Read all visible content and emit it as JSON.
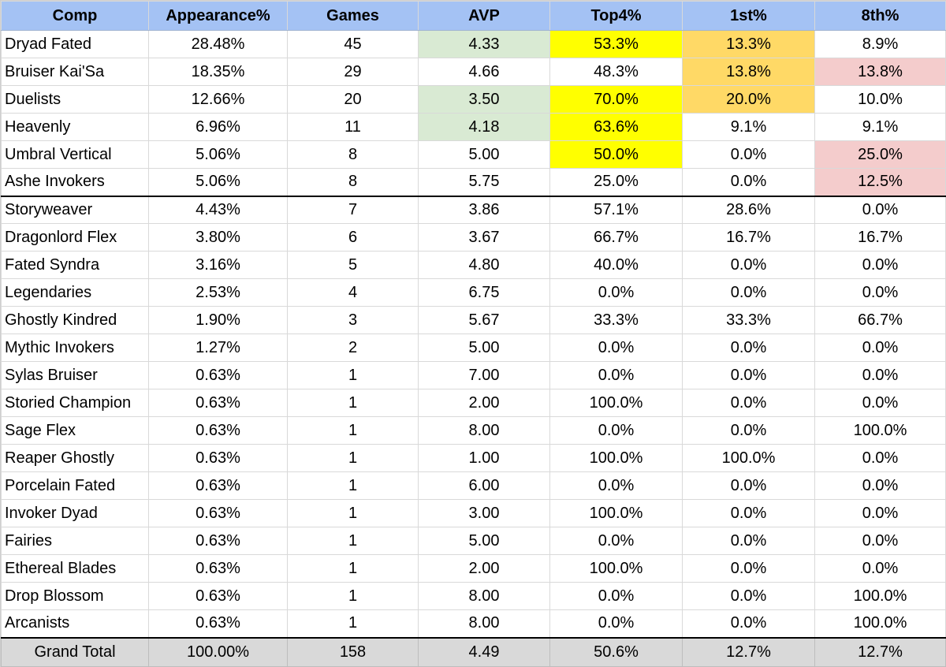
{
  "headers": [
    "Comp",
    "Appearance%",
    "Games",
    "AVP",
    "Top4%",
    "1st%",
    "8th%"
  ],
  "highlight_colors": {
    "green": "#d9ead3",
    "yellow": "#ffff00",
    "orange": "#ffd966",
    "pink": "#f4cccc",
    "header": "#a4c2f4",
    "total": "#d9d9d9"
  },
  "rows": [
    {
      "cells": [
        "Dryad Fated",
        "28.48%",
        "45",
        "4.33",
        "53.3%",
        "13.3%",
        "8.9%"
      ],
      "colors": [
        "",
        "",
        "",
        "green",
        "yellow",
        "orange",
        ""
      ]
    },
    {
      "cells": [
        "Bruiser Kai'Sa",
        "18.35%",
        "29",
        "4.66",
        "48.3%",
        "13.8%",
        "13.8%"
      ],
      "colors": [
        "",
        "",
        "",
        "",
        "",
        "orange",
        "pink"
      ]
    },
    {
      "cells": [
        "Duelists",
        "12.66%",
        "20",
        "3.50",
        "70.0%",
        "20.0%",
        "10.0%"
      ],
      "colors": [
        "",
        "",
        "",
        "green",
        "yellow",
        "orange",
        ""
      ]
    },
    {
      "cells": [
        "Heavenly",
        "6.96%",
        "11",
        "4.18",
        "63.6%",
        "9.1%",
        "9.1%"
      ],
      "colors": [
        "",
        "",
        "",
        "green",
        "yellow",
        "",
        ""
      ]
    },
    {
      "cells": [
        "Umbral Vertical",
        "5.06%",
        "8",
        "5.00",
        "50.0%",
        "0.0%",
        "25.0%"
      ],
      "colors": [
        "",
        "",
        "",
        "",
        "yellow",
        "",
        "pink"
      ]
    },
    {
      "cells": [
        "Ashe Invokers",
        "5.06%",
        "8",
        "5.75",
        "25.0%",
        "0.0%",
        "12.5%"
      ],
      "colors": [
        "",
        "",
        "",
        "",
        "",
        "",
        "pink"
      ]
    },
    {
      "cells": [
        "Storyweaver",
        "4.43%",
        "7",
        "3.86",
        "57.1%",
        "28.6%",
        "0.0%"
      ],
      "colors": []
    },
    {
      "cells": [
        "Dragonlord Flex",
        "3.80%",
        "6",
        "3.67",
        "66.7%",
        "16.7%",
        "16.7%"
      ],
      "colors": []
    },
    {
      "cells": [
        "Fated Syndra",
        "3.16%",
        "5",
        "4.80",
        "40.0%",
        "0.0%",
        "0.0%"
      ],
      "colors": []
    },
    {
      "cells": [
        "Legendaries",
        "2.53%",
        "4",
        "6.75",
        "0.0%",
        "0.0%",
        "0.0%"
      ],
      "colors": []
    },
    {
      "cells": [
        "Ghostly Kindred",
        "1.90%",
        "3",
        "5.67",
        "33.3%",
        "33.3%",
        "66.7%"
      ],
      "colors": []
    },
    {
      "cells": [
        "Mythic Invokers",
        "1.27%",
        "2",
        "5.00",
        "0.0%",
        "0.0%",
        "0.0%"
      ],
      "colors": []
    },
    {
      "cells": [
        "Sylas Bruiser",
        "0.63%",
        "1",
        "7.00",
        "0.0%",
        "0.0%",
        "0.0%"
      ],
      "colors": []
    },
    {
      "cells": [
        "Storied Champion",
        "0.63%",
        "1",
        "2.00",
        "100.0%",
        "0.0%",
        "0.0%"
      ],
      "colors": []
    },
    {
      "cells": [
        "Sage Flex",
        "0.63%",
        "1",
        "8.00",
        "0.0%",
        "0.0%",
        "100.0%"
      ],
      "colors": []
    },
    {
      "cells": [
        "Reaper Ghostly",
        "0.63%",
        "1",
        "1.00",
        "100.0%",
        "100.0%",
        "0.0%"
      ],
      "colors": []
    },
    {
      "cells": [
        "Porcelain Fated",
        "0.63%",
        "1",
        "6.00",
        "0.0%",
        "0.0%",
        "0.0%"
      ],
      "colors": []
    },
    {
      "cells": [
        "Invoker Dyad",
        "0.63%",
        "1",
        "3.00",
        "100.0%",
        "0.0%",
        "0.0%"
      ],
      "colors": []
    },
    {
      "cells": [
        "Fairies",
        "0.63%",
        "1",
        "5.00",
        "0.0%",
        "0.0%",
        "0.0%"
      ],
      "colors": []
    },
    {
      "cells": [
        "Ethereal Blades",
        "0.63%",
        "1",
        "2.00",
        "100.0%",
        "0.0%",
        "0.0%"
      ],
      "colors": []
    },
    {
      "cells": [
        "Drop Blossom",
        "0.63%",
        "1",
        "8.00",
        "0.0%",
        "0.0%",
        "100.0%"
      ],
      "colors": []
    },
    {
      "cells": [
        "Arcanists",
        "0.63%",
        "1",
        "8.00",
        "0.0%",
        "0.0%",
        "100.0%"
      ],
      "colors": []
    }
  ],
  "total": [
    "Grand Total",
    "100.00%",
    "158",
    "4.49",
    "50.6%",
    "12.7%",
    "12.7%"
  ]
}
